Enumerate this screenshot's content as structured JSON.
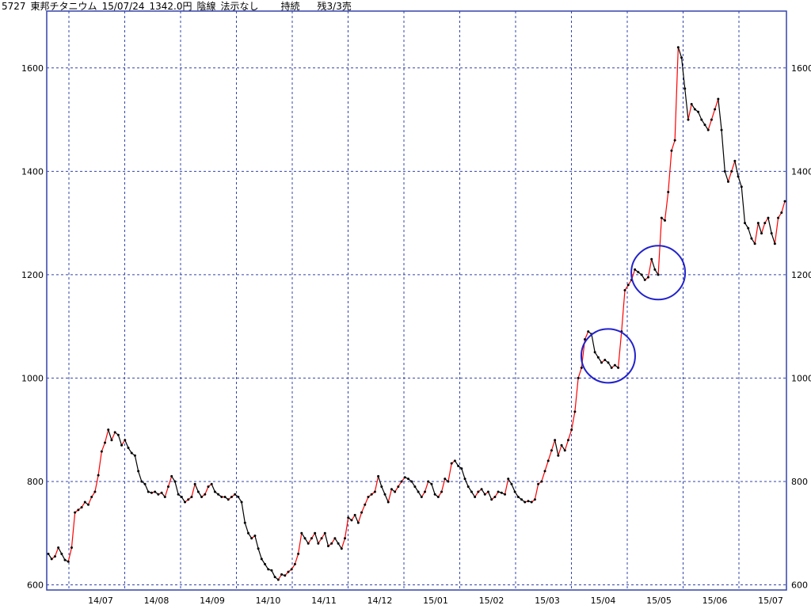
{
  "header": {
    "code": "5727",
    "name": "東邦チタニウム",
    "date": "15/07/24",
    "price": "1342.0円",
    "line_type": "陰線",
    "signal": "法示なし",
    "status": "持続",
    "remaining": "残3/3売"
  },
  "colors": {
    "up": "#ff0000",
    "down": "#000000",
    "grid": "#3344aa",
    "frame": "#3344aa",
    "highlight": "#2222cc"
  },
  "chart_data": {
    "type": "line",
    "title": "",
    "xlabel": "",
    "ylabel": "",
    "ylim": [
      590,
      1710
    ],
    "y_ticks": [
      "600",
      "800",
      "1000",
      "1200",
      "1400",
      "1600"
    ],
    "x_ticks": [
      "14/07",
      "14/08",
      "14/09",
      "14/10",
      "14/11",
      "14/12",
      "15/01",
      "15/02",
      "15/03",
      "15/04",
      "15/05",
      "15/06",
      "15/07"
    ],
    "grid": true,
    "series": [
      {
        "values": [
          660,
          650,
          655,
          672,
          660,
          648,
          645,
          672,
          740,
          745,
          750,
          760,
          755,
          770,
          780,
          812,
          858,
          875,
          900,
          880,
          895,
          890,
          870,
          880,
          865,
          855,
          850,
          820,
          800,
          795,
          780,
          778,
          780,
          775,
          778,
          770,
          790,
          810,
          800,
          775,
          770,
          760,
          765,
          770,
          795,
          780,
          770,
          775,
          790,
          795,
          780,
          775,
          770,
          770,
          765,
          770,
          775,
          770,
          760,
          720,
          700,
          690,
          695,
          670,
          650,
          640,
          630,
          628,
          615,
          610,
          620,
          618,
          625,
          630,
          640,
          660,
          700,
          690,
          680,
          690,
          700,
          680,
          690,
          700,
          675,
          680,
          690,
          680,
          670,
          690,
          730,
          725,
          735,
          720,
          740,
          755,
          770,
          775,
          780,
          810,
          790,
          775,
          760,
          785,
          780,
          790,
          800,
          808,
          805,
          800,
          790,
          780,
          770,
          780,
          800,
          795,
          775,
          770,
          780,
          805,
          800,
          835,
          840,
          830,
          825,
          805,
          790,
          780,
          770,
          780,
          785,
          775,
          780,
          765,
          770,
          780,
          778,
          775,
          805,
          795,
          780,
          770,
          765,
          760,
          762,
          760,
          765,
          795,
          800,
          820,
          840,
          860,
          880,
          850,
          870,
          860,
          880,
          900,
          935,
          1000,
          1020,
          1075,
          1090,
          1085,
          1050,
          1040,
          1030,
          1035,
          1030,
          1020,
          1025,
          1020,
          1090,
          1170,
          1180,
          1190,
          1210,
          1205,
          1200,
          1190,
          1195,
          1230,
          1210,
          1200,
          1310,
          1305,
          1360,
          1440,
          1460,
          1640,
          1620,
          1560,
          1500,
          1530,
          1520,
          1515,
          1500,
          1490,
          1480,
          1500,
          1520,
          1540,
          1480,
          1400,
          1380,
          1400,
          1420,
          1390,
          1370,
          1300,
          1290,
          1270,
          1260,
          1300,
          1280,
          1300,
          1310,
          1280,
          1260,
          1310,
          1320,
          1342
        ]
      }
    ],
    "annotations": [
      {
        "type": "circle",
        "x_index": 168,
        "y": 1043
      },
      {
        "type": "circle",
        "x_index": 183,
        "y": 1204
      }
    ]
  }
}
